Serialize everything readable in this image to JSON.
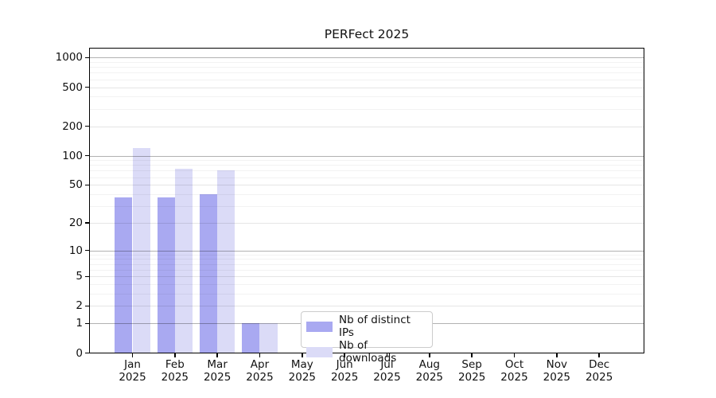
{
  "chart_data": {
    "type": "bar",
    "title": "PERFect 2025",
    "categories": [
      "Jan 2025",
      "Feb 2025",
      "Mar 2025",
      "Apr 2025",
      "May 2025",
      "Jun 2025",
      "Jul 2025",
      "Aug 2025",
      "Sep 2025",
      "Oct 2025",
      "Nov 2025",
      "Dec 2025"
    ],
    "series": [
      {
        "name": "Nb of distinct IPs",
        "color": "#a9a9f1",
        "values": [
          37,
          37,
          40,
          1,
          0,
          0,
          0,
          0,
          0,
          0,
          0,
          0
        ]
      },
      {
        "name": "Nb of downloads",
        "color": "#dbdbf7",
        "values": [
          120,
          74,
          71,
          1,
          0,
          0,
          0,
          0,
          0,
          0,
          0,
          0
        ]
      }
    ],
    "y_scale": "log10(1+v)",
    "y_ticks": [
      0,
      1,
      2,
      5,
      10,
      20,
      50,
      100,
      200,
      500,
      1000
    ],
    "y_minor_ticks": [
      3,
      4,
      6,
      7,
      8,
      9,
      30,
      40,
      60,
      70,
      80,
      90,
      300,
      400,
      600,
      700,
      800,
      900
    ],
    "y_major_grid": [
      1,
      10,
      100,
      1000
    ],
    "ylim": [
      0,
      1260
    ],
    "xlabel": "",
    "ylabel": "",
    "grid": "horizontal",
    "legend_position": "lower-center"
  }
}
